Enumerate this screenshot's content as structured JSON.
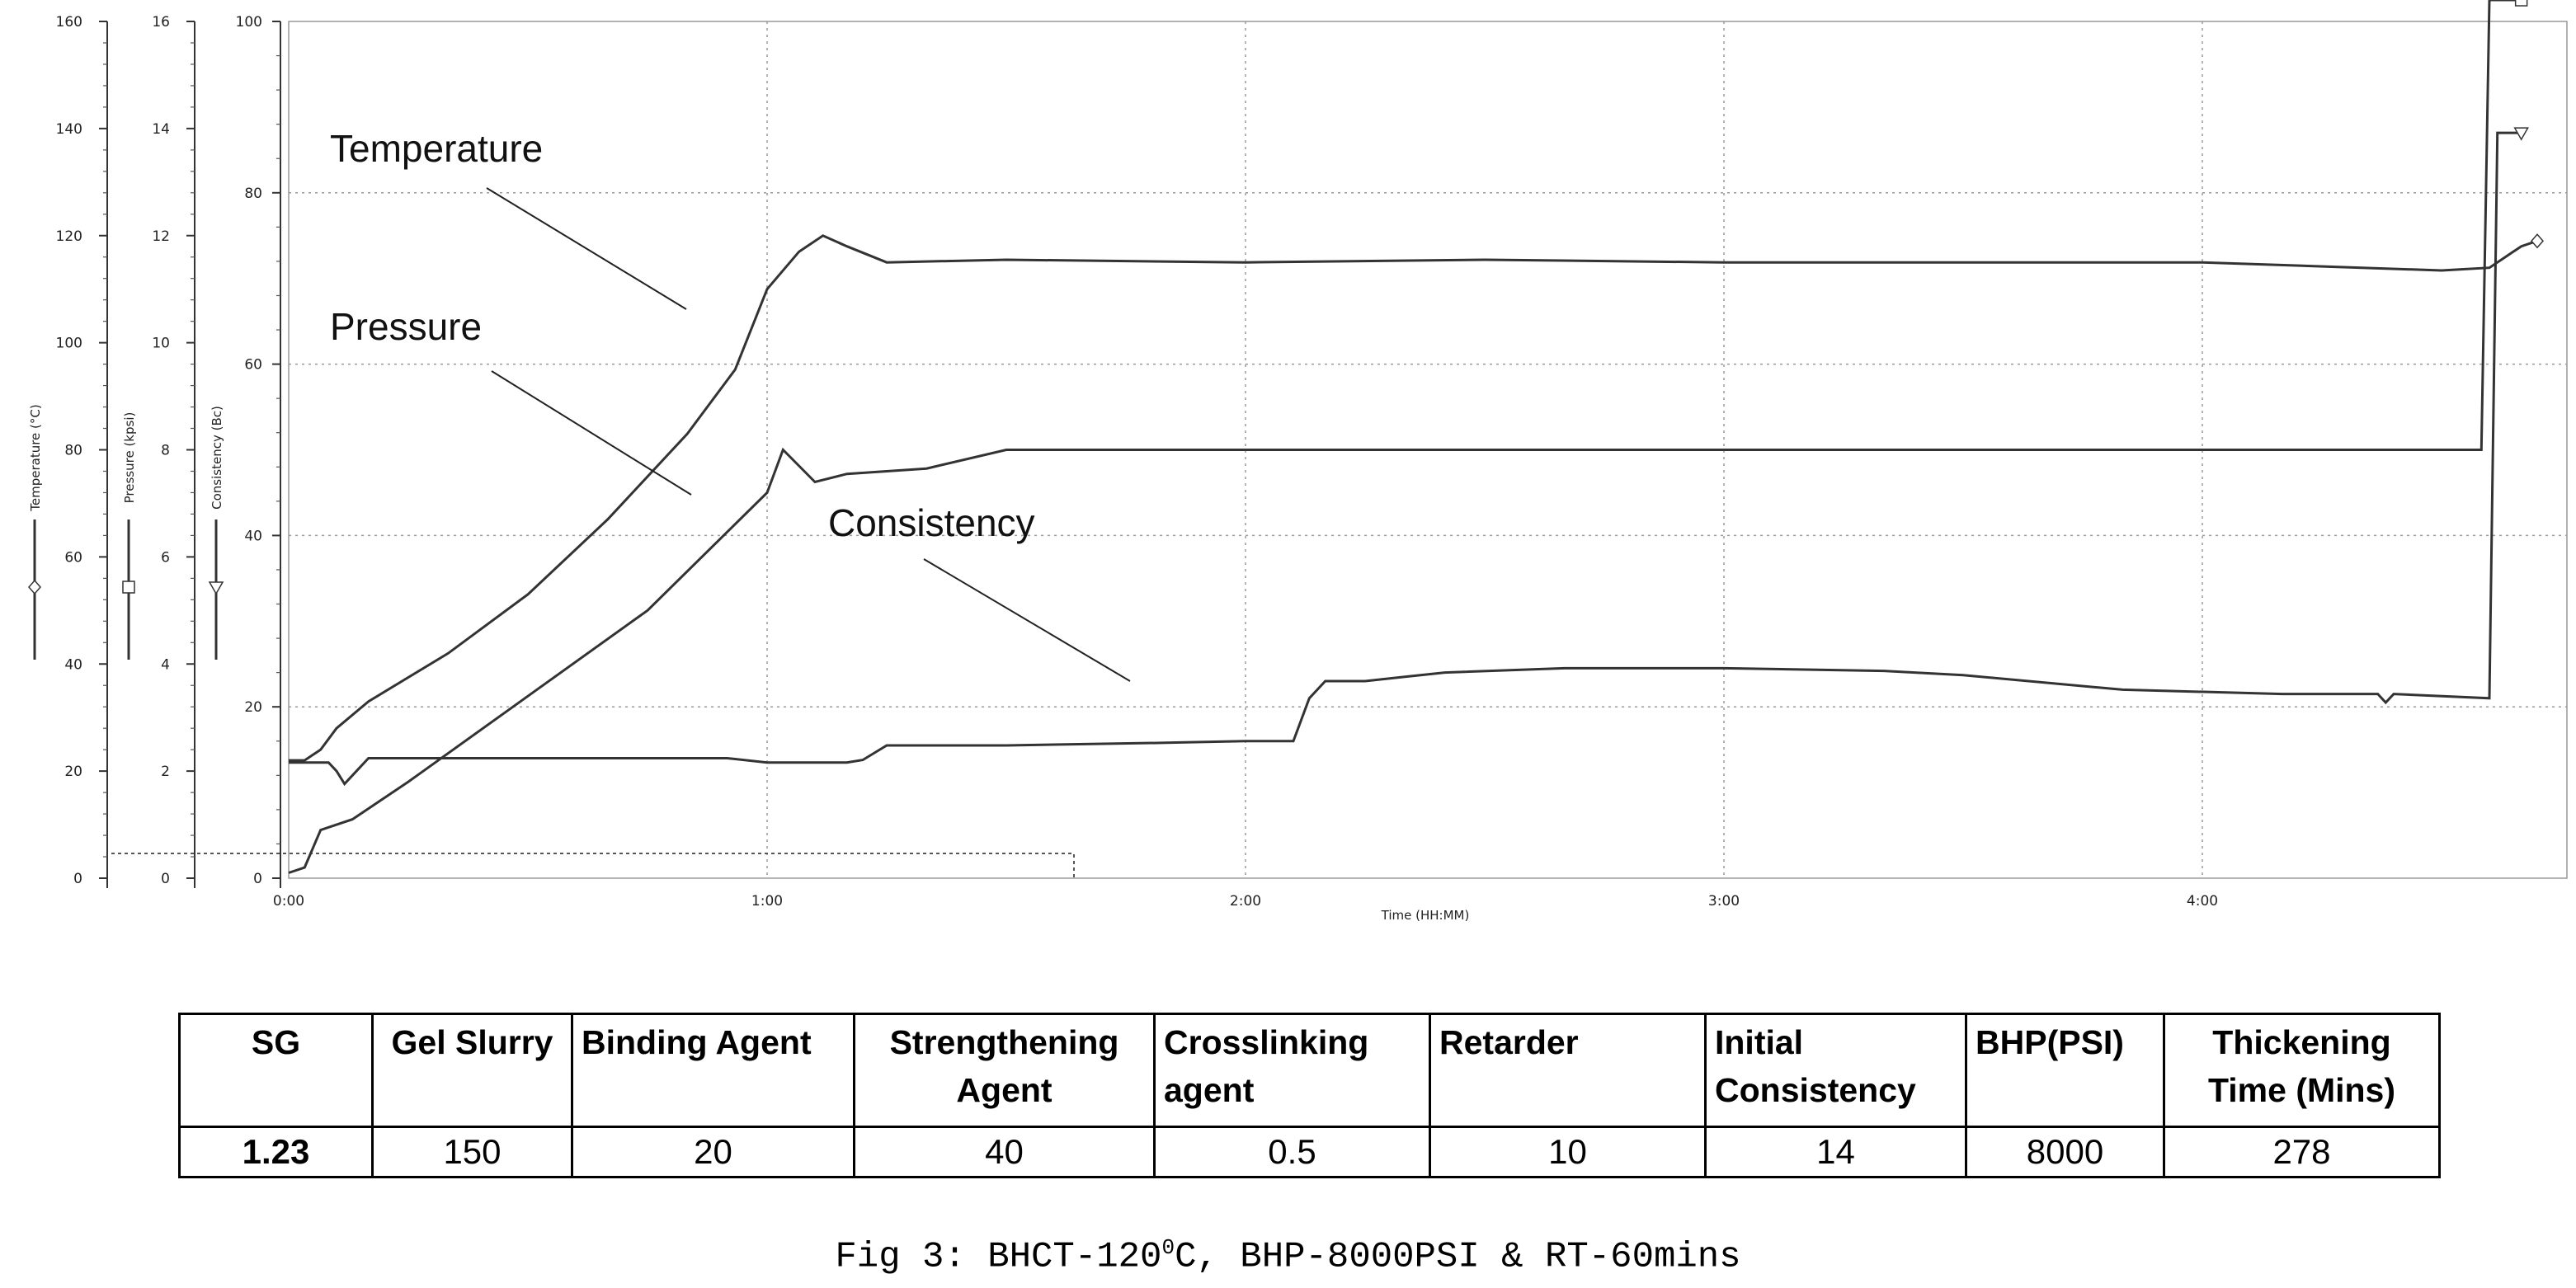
{
  "chart_data": {
    "type": "line",
    "xlabel": "Time (HH:MM)",
    "x_ticks": [
      "0:00",
      "1:00",
      "2:00",
      "3:00",
      "4:00"
    ],
    "xlim_minutes": [
      0,
      282
    ],
    "axes": [
      {
        "name": "Temperature (°C)",
        "ticks": [
          "0",
          "20",
          "40",
          "60",
          "80",
          "100",
          "120",
          "140",
          "160"
        ],
        "range": [
          0,
          160
        ]
      },
      {
        "name": "Pressure (kpsi)",
        "ticks": [
          "0",
          "2",
          "4",
          "6",
          "8",
          "10",
          "12",
          "14",
          "16"
        ],
        "range": [
          0,
          16
        ]
      },
      {
        "name": "Consistency (Bc)",
        "ticks": [
          "0",
          "20",
          "40",
          "60",
          "80",
          "100"
        ],
        "range": [
          0,
          100
        ]
      }
    ],
    "grid": true,
    "series": [
      {
        "name": "Temperature",
        "axis": "Temperature (°C)",
        "color": "#333333",
        "points": [
          [
            0,
            22
          ],
          [
            2,
            22
          ],
          [
            4,
            24
          ],
          [
            6,
            28
          ],
          [
            10,
            33
          ],
          [
            20,
            42
          ],
          [
            30,
            53
          ],
          [
            40,
            67
          ],
          [
            50,
            83
          ],
          [
            56,
            95
          ],
          [
            60,
            110
          ],
          [
            64,
            117
          ],
          [
            67,
            120
          ],
          [
            70,
            118
          ],
          [
            75,
            115
          ],
          [
            90,
            115.5
          ],
          [
            120,
            115
          ],
          [
            150,
            115.5
          ],
          [
            180,
            115
          ],
          [
            210,
            115
          ],
          [
            240,
            115
          ],
          [
            260,
            114
          ],
          [
            270,
            113.5
          ],
          [
            276,
            114
          ],
          [
            278,
            116
          ],
          [
            280,
            118
          ],
          [
            282,
            119
          ]
        ]
      },
      {
        "name": "Pressure",
        "axis": "Pressure (kpsi)",
        "color": "#333333",
        "points": [
          [
            0,
            0.1
          ],
          [
            2,
            0.2
          ],
          [
            4,
            0.9
          ],
          [
            8,
            1.1
          ],
          [
            15,
            1.8
          ],
          [
            30,
            3.4
          ],
          [
            45,
            5.0
          ],
          [
            60,
            7.2
          ],
          [
            62,
            8.0
          ],
          [
            64,
            7.7
          ],
          [
            66,
            7.4
          ],
          [
            70,
            7.55
          ],
          [
            80,
            7.65
          ],
          [
            90,
            8.0
          ],
          [
            120,
            8.0
          ],
          [
            150,
            8.0
          ],
          [
            180,
            8.0
          ],
          [
            210,
            8.0
          ],
          [
            240,
            8.0
          ],
          [
            270,
            8.0
          ],
          [
            275,
            8.0
          ],
          [
            276,
            16.4
          ],
          [
            280,
            16.4
          ]
        ]
      },
      {
        "name": "Consistency",
        "axis": "Consistency (Bc)",
        "color": "#333333",
        "points": [
          [
            0,
            13.5
          ],
          [
            5,
            13.5
          ],
          [
            6,
            12.5
          ],
          [
            7,
            11
          ],
          [
            8,
            12
          ],
          [
            10,
            14
          ],
          [
            20,
            14
          ],
          [
            50,
            14
          ],
          [
            55,
            14
          ],
          [
            60,
            13.5
          ],
          [
            70,
            13.5
          ],
          [
            72,
            13.8
          ],
          [
            75,
            15.5
          ],
          [
            90,
            15.5
          ],
          [
            110,
            15.8
          ],
          [
            120,
            16
          ],
          [
            126,
            16
          ],
          [
            128,
            21
          ],
          [
            130,
            23
          ],
          [
            135,
            23
          ],
          [
            140,
            23.5
          ],
          [
            145,
            24
          ],
          [
            160,
            24.5
          ],
          [
            180,
            24.5
          ],
          [
            200,
            24.2
          ],
          [
            210,
            23.7
          ],
          [
            230,
            22
          ],
          [
            250,
            21.5
          ],
          [
            262,
            21.5
          ],
          [
            263,
            20.5
          ],
          [
            264,
            21.5
          ],
          [
            276,
            21
          ],
          [
            277,
            87
          ],
          [
            280,
            87
          ]
        ]
      }
    ]
  },
  "annotations": {
    "temperature": "Temperature",
    "pressure": "Pressure",
    "consistency": "Consistency"
  },
  "table": {
    "headers": [
      "SG",
      "Gel Slurry",
      "Binding Agent",
      "Strengthening Agent",
      "Crosslinking agent",
      "Retarder",
      "Initial Consistency",
      "BHP(PSI)",
      "Thickening Time (Mins)"
    ],
    "row": [
      "1.23",
      "150",
      "20",
      "40",
      "0.5",
      "10",
      "14",
      "8000",
      "278"
    ]
  },
  "caption": {
    "main": "Fig 3: BHCT-120",
    "sup": "0",
    "rest": "C, BHP-8000PSI & RT-60mins"
  }
}
